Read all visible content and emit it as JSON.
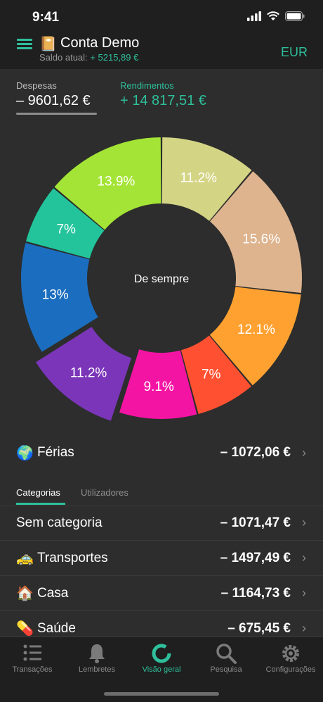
{
  "status_bar": {
    "time": "9:41"
  },
  "header": {
    "account_title": "Conta Demo",
    "balance_label": "Saldo atual:",
    "balance_value": "+ 5215,89 €",
    "currency": "EUR"
  },
  "summary": {
    "expenses_label": "Despesas",
    "expenses_value": "– 9601,62 €",
    "income_label": "Rendimentos",
    "income_value": "+ 14 817,51 €"
  },
  "chart_data": {
    "type": "pie",
    "center_label": "De sempre",
    "slices": [
      {
        "label": "11.2%",
        "value": 11.2,
        "color": "#d4d485"
      },
      {
        "label": "15.6%",
        "value": 15.6,
        "color": "#deb48f"
      },
      {
        "label": "12.1%",
        "value": 12.1,
        "color": "#ffa131"
      },
      {
        "label": "7%",
        "value": 7.0,
        "color": "#ff5131"
      },
      {
        "label": "9.1%",
        "value": 9.1,
        "color": "#f414a4"
      },
      {
        "label": "11.2%",
        "value": 11.2,
        "color": "#7b35b8",
        "exploded": true
      },
      {
        "label": "13%",
        "value": 13.0,
        "color": "#1b6dbf"
      },
      {
        "label": "7%",
        "value": 7.0,
        "color": "#23c49c"
      },
      {
        "label": "13.9%",
        "value": 13.9,
        "color": "#a4e436"
      }
    ]
  },
  "highlight_row": {
    "emoji": "🌍",
    "label": "Férias",
    "value": "– 1072,06 €"
  },
  "tabs": {
    "categories": "Categorias",
    "users": "Utilizadores"
  },
  "categories": [
    {
      "emoji": "",
      "label": "Sem categoria",
      "value": "– 1071,47 €"
    },
    {
      "emoji": "🚕",
      "label": "Transportes",
      "value": "– 1497,49 €"
    },
    {
      "emoji": "🏠",
      "label": "Casa",
      "value": "– 1164,73 €"
    },
    {
      "emoji": "💊",
      "label": "Saúde",
      "value": "– 675,45 €"
    }
  ],
  "bottom_nav": {
    "transactions": "Transações",
    "reminders": "Lembretes",
    "overview": "Visão geral",
    "search": "Pesquisa",
    "settings": "Configurações"
  },
  "colors": {
    "accent": "#2fbf9c",
    "background": "#2c2d2c",
    "bar": "#1e1f1e"
  }
}
